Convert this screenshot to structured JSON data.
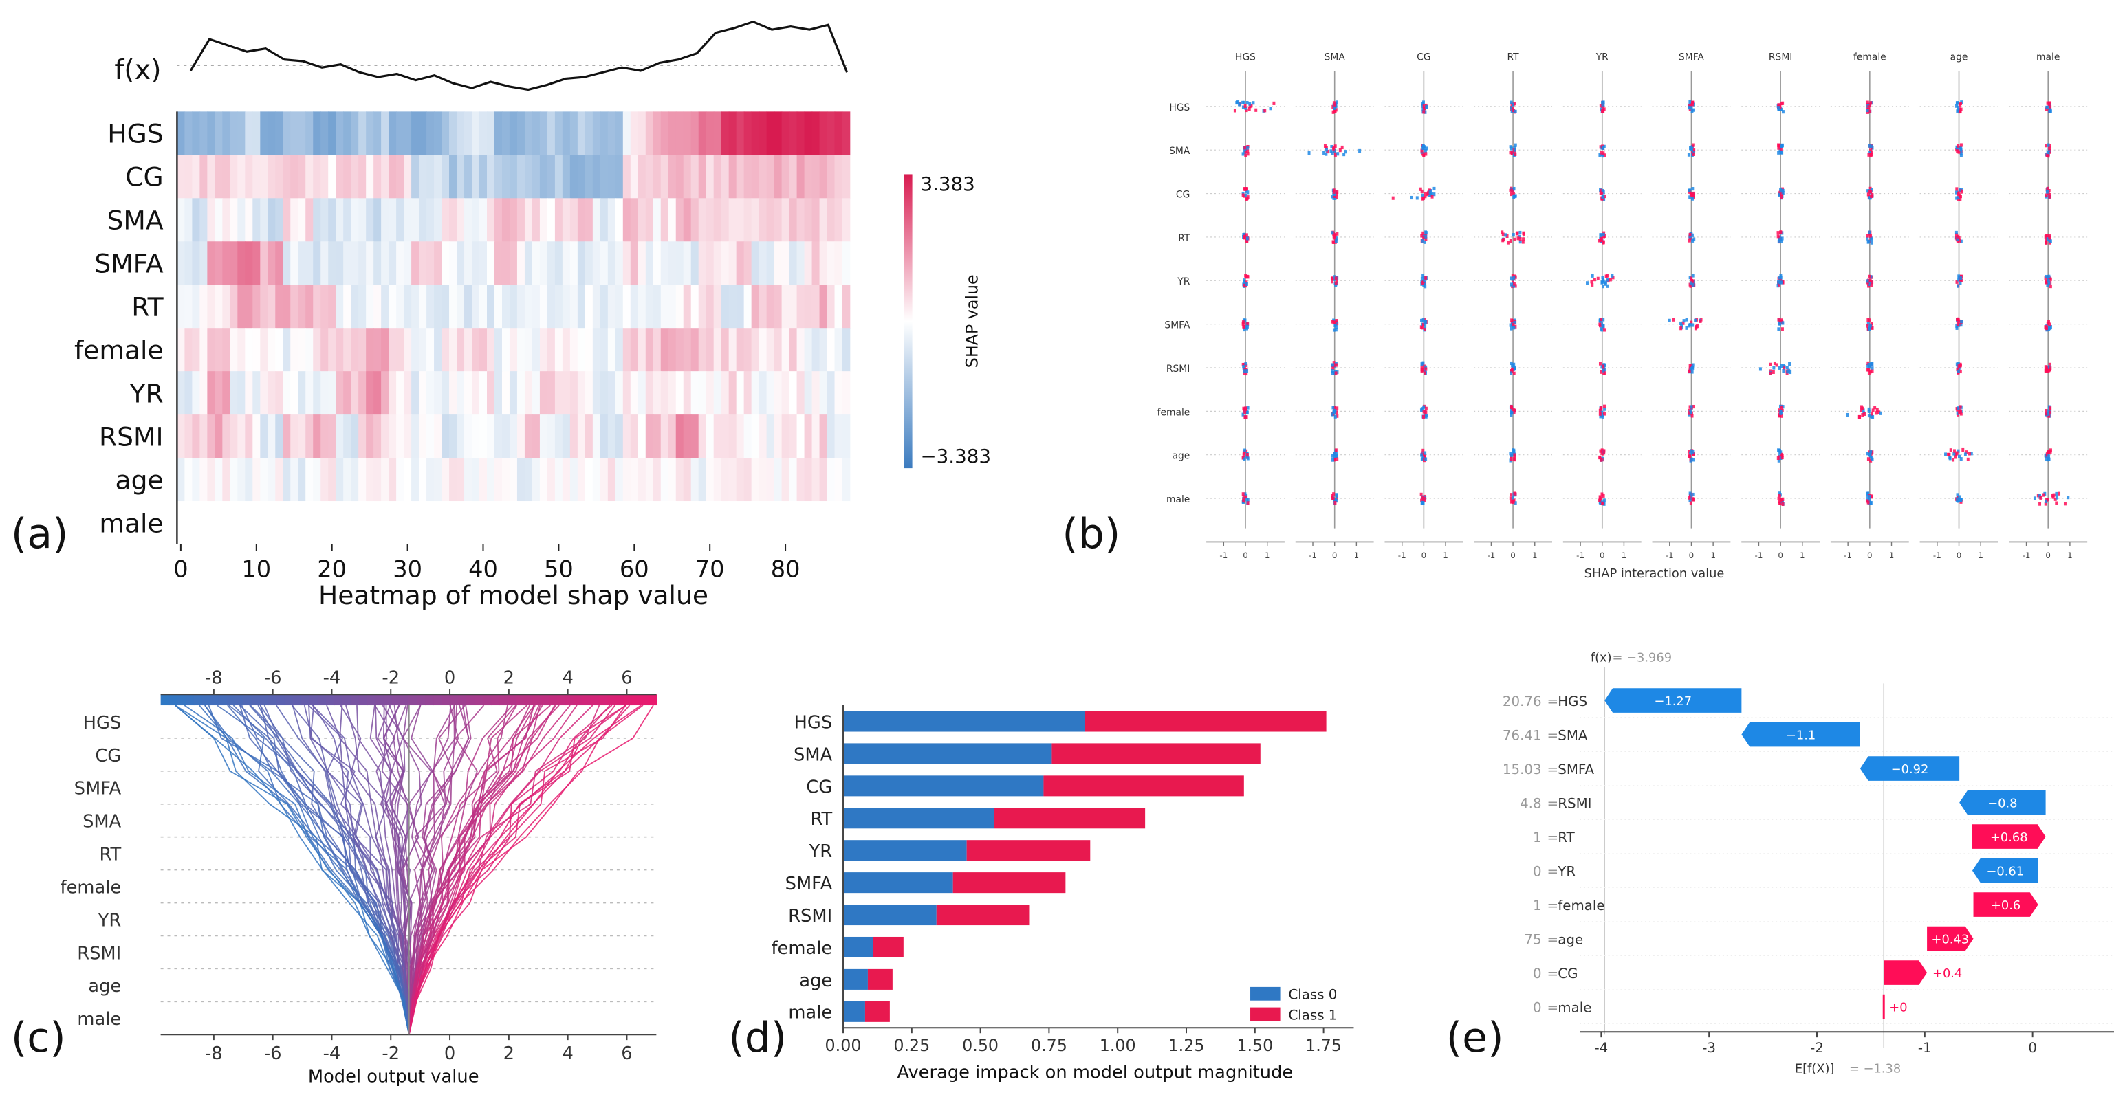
{
  "panel_labels": [
    "(a)",
    "(b)",
    "(c)",
    "(d)",
    "(e)"
  ],
  "chart_data": [
    {
      "panel": "(a)",
      "type": "heatmap",
      "title": "",
      "xlabel": "Heatmap of model shap value",
      "top_line_label": "f(x)",
      "features": [
        "HGS",
        "CG",
        "SMA",
        "SMFA",
        "RT",
        "female",
        "YR",
        "RSMI",
        "age",
        "male"
      ],
      "x_ticks": [
        0,
        10,
        20,
        30,
        40,
        50,
        60,
        70,
        80
      ],
      "n_instances": 89,
      "colorbar": {
        "label": "SHAP value",
        "max_label": "3.383",
        "min_label": "−3.383",
        "vmin": -3.383,
        "vmax": 3.383
      },
      "band_profiles": [
        [
          -2.0,
          -1.8,
          -1.2,
          -2.2,
          -1.6,
          -2.3,
          -1.8,
          -1.4,
          -1.9,
          -2.1,
          -1.2,
          -0.5,
          -2.0,
          -1.8,
          -1.5,
          -1.4,
          -1.6,
          0.2,
          1.2,
          1.6,
          2.0,
          2.9,
          3.3,
          3.3,
          3.2,
          3.0
        ],
        [
          0.6,
          0.7,
          0.5,
          0.7,
          0.6,
          0.4,
          0.6,
          0.5,
          0.6,
          -1.0,
          -1.3,
          -1.2,
          -1.5,
          -1.0,
          -1.3,
          -2.0,
          -1.8,
          0.6,
          0.9,
          1.0,
          0.8,
          0.9,
          1.1,
          1.2,
          1.0,
          0.9
        ],
        [
          -0.6,
          0.3,
          -0.3,
          -0.9,
          0.4,
          -0.5,
          -0.4,
          -0.7,
          -0.3,
          -0.5,
          0.2,
          0.1,
          0.9,
          0.6,
          0.4,
          0.7,
          -0.3,
          0.8,
          0.3,
          1.0,
          0.4,
          0.6,
          0.5,
          0.8,
          0.7,
          0.4
        ],
        [
          -0.4,
          1.6,
          1.9,
          1.3,
          -0.4,
          -0.6,
          -0.3,
          -0.5,
          -0.2,
          0.9,
          -0.4,
          -0.2,
          0.7,
          -0.3,
          -0.4,
          -0.5,
          -0.1,
          0.6,
          -0.3,
          -0.5,
          0.3,
          0.6,
          -0.4,
          -0.2,
          0.5,
          0.3
        ],
        [
          -0.3,
          0.4,
          1.2,
          1.0,
          1.1,
          0.9,
          -0.4,
          -0.3,
          -0.2,
          -0.4,
          -0.3,
          -0.5,
          -0.4,
          -0.3,
          -0.2,
          -0.4,
          -0.3,
          -0.2,
          -0.3,
          0.4,
          0.8,
          -0.4,
          0.9,
          0.5,
          1.0,
          0.4
        ],
        [
          0.3,
          0.8,
          -0.2,
          0.4,
          -0.3,
          0.5,
          0.9,
          1.1,
          0.2,
          -0.3,
          0.4,
          0.6,
          -0.2,
          -0.3,
          0.4,
          0.3,
          -0.3,
          0.8,
          1.0,
          1.2,
          0.4,
          0.6,
          0.3,
          0.5,
          -0.4,
          -0.3
        ],
        [
          -0.3,
          1.1,
          -0.2,
          0.3,
          -0.2,
          -0.4,
          1.0,
          1.4,
          0.3,
          -0.3,
          -0.2,
          0.4,
          -0.3,
          -0.2,
          0.5,
          0.2,
          -0.3,
          0.2,
          0.6,
          0.2,
          -0.2,
          0.4,
          -0.3,
          0.3,
          -0.2,
          -0.3
        ],
        [
          0.8,
          1.1,
          0.4,
          -0.5,
          0.7,
          1.3,
          -0.4,
          0.8,
          0.5,
          -0.2,
          -0.5,
          0.3,
          -0.4,
          0.6,
          -0.3,
          0.5,
          -0.6,
          0.4,
          0.9,
          1.7,
          0.3,
          0.2,
          -0.2,
          0.3,
          0.5,
          -0.3
        ],
        [
          -0.2,
          0.3,
          -0.1,
          0.2,
          -0.3,
          0.1,
          -0.2,
          0.2,
          0.1,
          -0.2,
          0.1,
          -0.1,
          0.2,
          -0.2,
          0.1,
          -0.1,
          0.2,
          -0.1,
          0.1,
          0.2,
          -0.1,
          0.1,
          -0.2,
          0.1,
          0.2,
          -0.1
        ],
        [
          0,
          0,
          0,
          0,
          0,
          0,
          0,
          0,
          0,
          0,
          0,
          0,
          0,
          0,
          0,
          0,
          0,
          0,
          0,
          0,
          0,
          0,
          0,
          0,
          0,
          0
        ]
      ],
      "fx_line": [
        0.38,
        0.78,
        0.7,
        0.62,
        0.66,
        0.52,
        0.5,
        0.42,
        0.46,
        0.36,
        0.3,
        0.34,
        0.26,
        0.32,
        0.22,
        0.16,
        0.24,
        0.18,
        0.14,
        0.2,
        0.28,
        0.3,
        0.36,
        0.42,
        0.38,
        0.48,
        0.52,
        0.6,
        0.86,
        0.92,
        1.0,
        0.9,
        0.94,
        0.9,
        0.96,
        0.36
      ]
    },
    {
      "panel": "(b)",
      "type": "scatter",
      "title": "",
      "xlabel": "SHAP interaction value",
      "columns": [
        "HGS",
        "SMA",
        "CG",
        "RT",
        "YR",
        "SMFA",
        "RSMI",
        "female",
        "age",
        "male"
      ],
      "rows": [
        "HGS",
        "SMA",
        "CG",
        "RT",
        "YR",
        "SMFA",
        "RSMI",
        "female",
        "age",
        "male"
      ],
      "x_ticks": [
        -1,
        0,
        1
      ],
      "xlim": [
        -1.6,
        1.6
      ]
    },
    {
      "panel": "(c)",
      "type": "line",
      "title": "",
      "xlabel": "Model output value",
      "features": [
        "HGS",
        "CG",
        "SMFA",
        "SMA",
        "RT",
        "female",
        "YR",
        "RSMI",
        "age",
        "male"
      ],
      "x_ticks": [
        -8,
        -6,
        -4,
        -2,
        0,
        2,
        4,
        6
      ],
      "xlim": [
        -9.8,
        7.0
      ],
      "base_value": -1.38,
      "n_lines": 90
    },
    {
      "panel": "(d)",
      "type": "bar",
      "title": "",
      "xlabel": "Average impack on model output magnitude",
      "categories": [
        "HGS",
        "SMA",
        "CG",
        "RT",
        "YR",
        "SMFA",
        "RSMI",
        "female",
        "age",
        "male"
      ],
      "series": [
        {
          "name": "Class 0",
          "color": "#2f78c4",
          "values": [
            0.88,
            0.76,
            0.73,
            0.55,
            0.45,
            0.4,
            0.34,
            0.11,
            0.09,
            0.08
          ]
        },
        {
          "name": "Class 1",
          "color": "#e8194f",
          "values": [
            0.88,
            0.76,
            0.73,
            0.55,
            0.45,
            0.41,
            0.34,
            0.11,
            0.09,
            0.09
          ]
        }
      ],
      "x_ticks": [
        "0.00",
        "0.25",
        "0.50",
        "0.75",
        "1.00",
        "1.25",
        "1.50",
        "1.75"
      ],
      "xlim": [
        0,
        1.86
      ]
    },
    {
      "panel": "(e)",
      "type": "bar",
      "subtype": "waterfall",
      "title": "",
      "fx_label": "f(x)",
      "fx_value": "= −3.969",
      "ex_label": "E[f(X)]",
      "ex_value": "= −1.38",
      "rows": [
        {
          "value_text": "20.76",
          "feature": "HGS",
          "label": "−1.27",
          "start": -2.699,
          "end": -3.969
        },
        {
          "value_text": "76.41",
          "feature": "SMA",
          "label": "−1.1",
          "start": -1.599,
          "end": -2.699
        },
        {
          "value_text": "15.03",
          "feature": "SMFA",
          "label": "−0.92",
          "start": -0.679,
          "end": -1.599
        },
        {
          "value_text": "4.8",
          "feature": "RSMI",
          "label": "−0.8",
          "start": 0.121,
          "end": -0.679
        },
        {
          "value_text": "1",
          "feature": "RT",
          "label": "+0.68",
          "start": -0.559,
          "end": 0.121
        },
        {
          "value_text": "0",
          "feature": "YR",
          "label": "−0.61",
          "start": 0.051,
          "end": -0.559
        },
        {
          "value_text": "1",
          "feature": "female",
          "label": "+0.6",
          "start": -0.549,
          "end": 0.051
        },
        {
          "value_text": "75",
          "feature": "age",
          "label": "+0.43",
          "start": -0.979,
          "end": -0.549
        },
        {
          "value_text": "0",
          "feature": "CG",
          "label": "+0.4",
          "start": -1.379,
          "end": -0.979
        },
        {
          "value_text": "0",
          "feature": "male",
          "label": "+0",
          "start": -1.38,
          "end": -1.379
        }
      ],
      "x_ticks": [
        -4,
        -3,
        -2,
        -1,
        0
      ],
      "xlim": [
        -4.2,
        0.8
      ],
      "colors": {
        "negative": "#1e88e5",
        "positive": "#ff0d57"
      }
    }
  ]
}
